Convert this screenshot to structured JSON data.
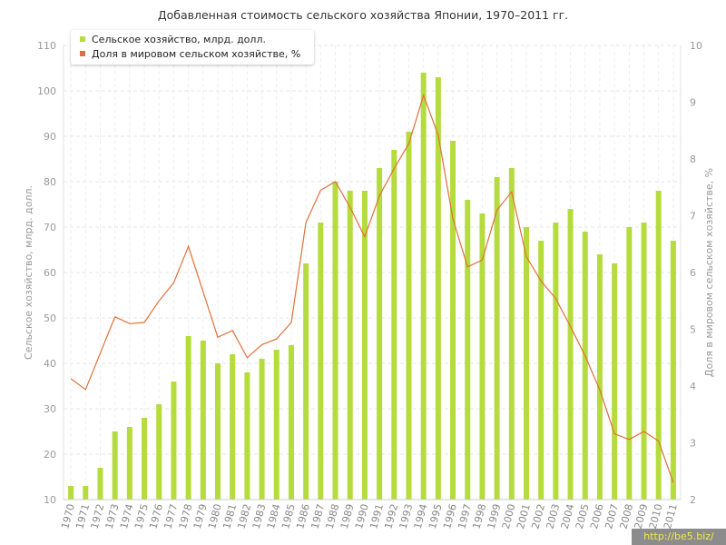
{
  "chart_data": {
    "type": "bar+line",
    "title": "Добавленная стоимость сельского хозяйства Японии, 1970–2011 гг.",
    "ylabel_left": "Сельское хозяйство, млрд. долл.",
    "ylabel_right": "Доля в мировом сельском хозяйстве, %",
    "ylim_left": [
      10,
      110
    ],
    "ylim_right": [
      2,
      10
    ],
    "yticks_left": [
      "10",
      "20",
      "30",
      "40",
      "50",
      "60",
      "70",
      "80",
      "90",
      "100",
      "110"
    ],
    "yticks_right": [
      "2",
      "3",
      "4",
      "5",
      "6",
      "7",
      "8",
      "9",
      "10"
    ],
    "grid": true,
    "legend_position": "top-left",
    "categories": [
      "1970",
      "1971",
      "1972",
      "1973",
      "1974",
      "1975",
      "1976",
      "1977",
      "1978",
      "1979",
      "1980",
      "1981",
      "1982",
      "1983",
      "1984",
      "1985",
      "1986",
      "1987",
      "1988",
      "1989",
      "1990",
      "1991",
      "1992",
      "1993",
      "1994",
      "1995",
      "1996",
      "1997",
      "1998",
      "1999",
      "2000",
      "2001",
      "2002",
      "2003",
      "2004",
      "2005",
      "2006",
      "2007",
      "2008",
      "2009",
      "2010",
      "2011"
    ],
    "series": [
      {
        "name": "Сельское хозяйство, млрд. долл.",
        "type": "bar",
        "axis": "left",
        "color": "#b5dc3c",
        "values": [
          13,
          13,
          17,
          25,
          26,
          28,
          31,
          36,
          46,
          45,
          40,
          42,
          38,
          41,
          43,
          44,
          62,
          71,
          80,
          78,
          78,
          83,
          87,
          91,
          104,
          103,
          89,
          76,
          73,
          81,
          83,
          70,
          67,
          71,
          74,
          69,
          64,
          62,
          70,
          71,
          78,
          67
        ]
      },
      {
        "name": "Доля в мировом сельском хозяйстве, %",
        "type": "line",
        "axis": "right",
        "color": "#e0703a",
        "values": [
          4.13,
          3.94,
          4.58,
          5.22,
          5.1,
          5.12,
          5.5,
          5.82,
          6.46,
          5.66,
          4.86,
          4.98,
          4.5,
          4.73,
          4.83,
          5.12,
          6.88,
          7.45,
          7.6,
          7.15,
          6.63,
          7.35,
          7.83,
          8.27,
          9.12,
          8.42,
          6.95,
          6.1,
          6.22,
          7.1,
          7.42,
          6.28,
          5.85,
          5.54,
          5.05,
          4.53,
          3.93,
          3.16,
          3.06,
          3.2,
          3.03,
          2.3
        ]
      }
    ]
  },
  "watermark": "http://be5.biz/"
}
